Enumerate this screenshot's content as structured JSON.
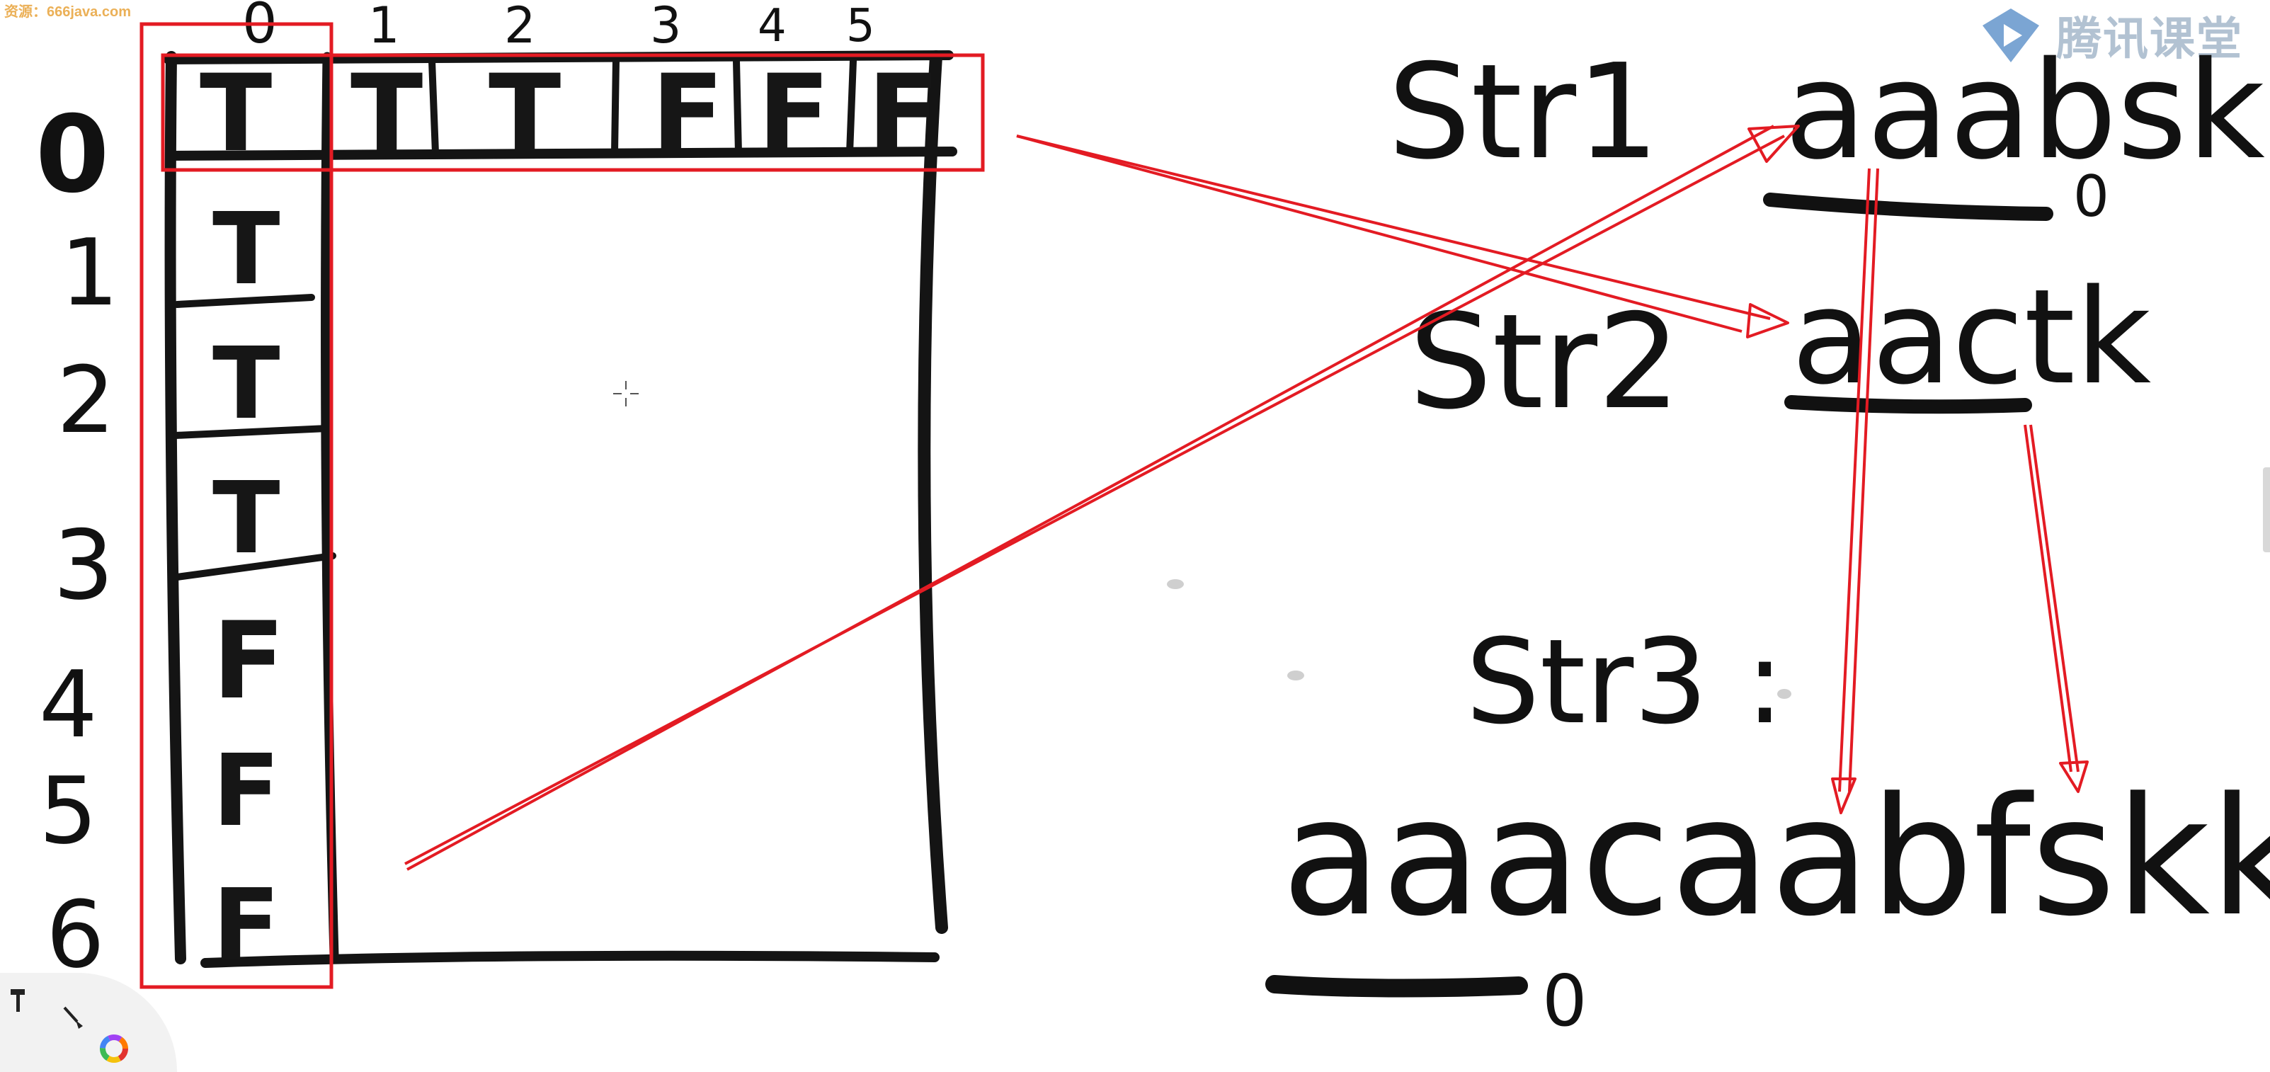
{
  "watermark_corner": "资源：666java.com",
  "brand": {
    "name": "腾讯课堂",
    "icon": "play-triangle-icon"
  },
  "table": {
    "col_headers": [
      "0",
      "1",
      "2",
      "3",
      "4",
      "5"
    ],
    "row_headers": [
      "0",
      "1",
      "2",
      "3",
      "4",
      "5",
      "6"
    ],
    "first_row": [
      "T",
      "T",
      "T",
      "F",
      "F",
      "F"
    ],
    "first_col": [
      "T",
      "T",
      "T",
      "T",
      "F",
      "F",
      "F"
    ]
  },
  "strings": {
    "str1_label": "Str1",
    "str1_value": "aaabsk",
    "str1_zero_mark": "0",
    "str2_label": "Str2",
    "str2_value": "aactk",
    "str3_label": "Str3 :",
    "aim_value": "aaacaabfskk",
    "aim_zero_mark": "0"
  },
  "tools": [
    {
      "name": "hammer-tool-icon"
    },
    {
      "name": "brush-tool-icon"
    },
    {
      "name": "color-wheel-icon"
    }
  ],
  "colors": {
    "highlight": "#e31b23",
    "ink": "#111111",
    "brand": "#4a90d9"
  }
}
